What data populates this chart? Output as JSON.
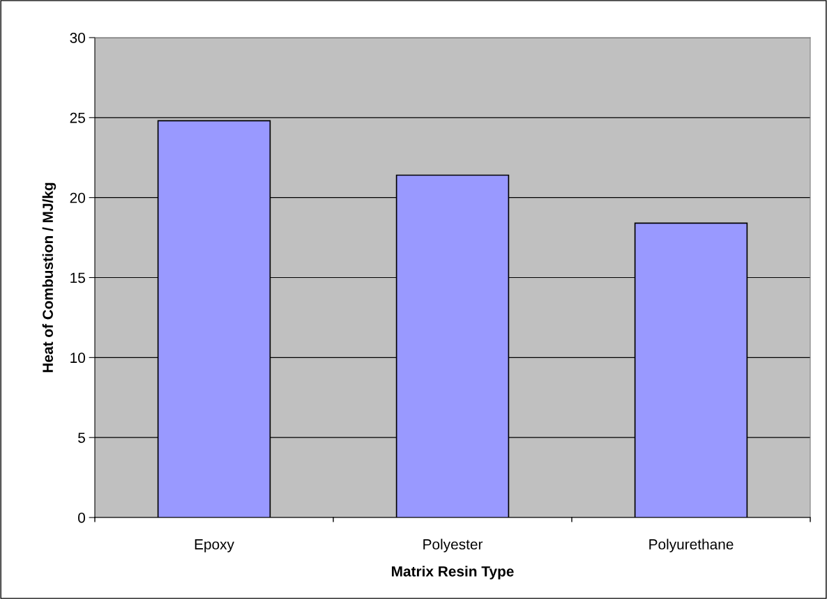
{
  "chart_data": {
    "type": "bar",
    "xlabel": "Matrix Resin Type",
    "ylabel": "Heat of Combustion / MJ/kg",
    "categories": [
      "Epoxy",
      "Polyester",
      "Polyurethane"
    ],
    "values": [
      24.8,
      21.4,
      18.4
    ],
    "color": "#9999ff",
    "ylim": [
      0,
      30
    ],
    "yticks": [
      0,
      5,
      10,
      15,
      20,
      25,
      30
    ],
    "grid": "y",
    "legend": false
  }
}
